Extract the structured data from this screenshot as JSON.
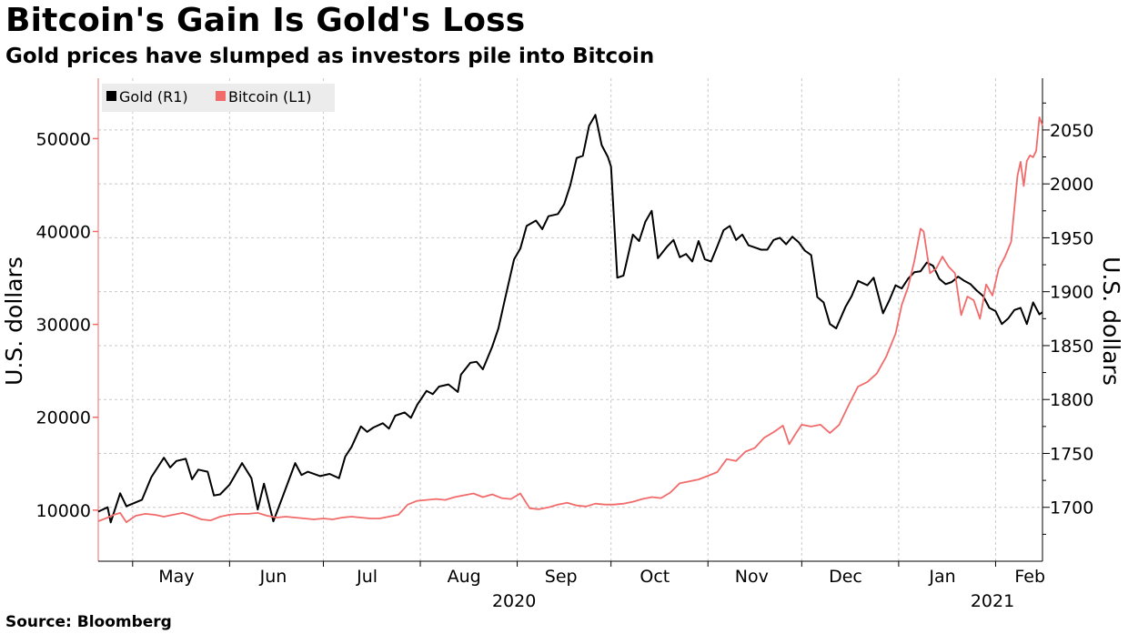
{
  "title": "Bitcoin's Gain Is Gold's Loss",
  "subtitle": "Gold prices have slumped as investors pile into Bitcoin",
  "source": "Source: Bloomberg",
  "colors": {
    "gold": "#000000",
    "bitcoin": "#f26b6b",
    "grid": "#c8c8c8",
    "legend_bg": "#ececec"
  },
  "chart_data": {
    "type": "line",
    "x_start": "2020-04-20",
    "x_end": "2021-02-16",
    "x_ticks": [
      {
        "label": "May",
        "date": "2020-05-15"
      },
      {
        "label": "Jun",
        "date": "2020-06-15"
      },
      {
        "label": "Jul",
        "date": "2020-07-15"
      },
      {
        "label": "Aug",
        "date": "2020-08-15"
      },
      {
        "label": "Sep",
        "date": "2020-09-15"
      },
      {
        "label": "Oct",
        "date": "2020-10-15"
      },
      {
        "label": "Nov",
        "date": "2020-11-15"
      },
      {
        "label": "Dec",
        "date": "2020-12-15"
      },
      {
        "label": "Jan",
        "date": "2021-01-15"
      },
      {
        "label": "Feb",
        "date": "2021-02-12"
      }
    ],
    "x_gridlines": [
      "2020-05-01",
      "2020-06-01",
      "2020-07-01",
      "2020-08-01",
      "2020-09-01",
      "2020-10-01",
      "2020-11-01",
      "2020-12-01",
      "2021-01-01",
      "2021-02-01"
    ],
    "year_labels": [
      {
        "label": "2020",
        "date": "2020-08-31"
      },
      {
        "label": "2021",
        "date": "2021-01-31"
      }
    ],
    "left_axis": {
      "label": "U.S. dollars",
      "ylim": [
        4500,
        56500
      ],
      "ticks": [
        10000,
        20000,
        30000,
        40000,
        50000
      ]
    },
    "right_axis": {
      "label": "U.S. dollars",
      "ylim": [
        1650,
        2098
      ],
      "ticks": [
        1700,
        1750,
        1800,
        1850,
        1900,
        1950,
        2000,
        2050
      ]
    },
    "legend": {
      "placement": "top-left",
      "entries": [
        "Gold (R1)",
        "Bitcoin (L1)"
      ]
    },
    "series": [
      {
        "name": "Gold (R1)",
        "axis": "right",
        "points": [
          [
            "2020-04-20",
            1696
          ],
          [
            "2020-04-23",
            1700
          ],
          [
            "2020-04-24",
            1686
          ],
          [
            "2020-04-27",
            1713
          ],
          [
            "2020-04-29",
            1701
          ],
          [
            "2020-05-04",
            1707
          ],
          [
            "2020-05-07",
            1728
          ],
          [
            "2020-05-11",
            1746
          ],
          [
            "2020-05-13",
            1737
          ],
          [
            "2020-05-15",
            1743
          ],
          [
            "2020-05-18",
            1745
          ],
          [
            "2020-05-20",
            1726
          ],
          [
            "2020-05-22",
            1735
          ],
          [
            "2020-05-25",
            1733
          ],
          [
            "2020-05-27",
            1711
          ],
          [
            "2020-05-29",
            1712
          ],
          [
            "2020-06-01",
            1721
          ],
          [
            "2020-06-05",
            1741
          ],
          [
            "2020-06-08",
            1727
          ],
          [
            "2020-06-10",
            1698
          ],
          [
            "2020-06-12",
            1722
          ],
          [
            "2020-06-15",
            1687
          ],
          [
            "2020-06-18",
            1710
          ],
          [
            "2020-06-22",
            1741
          ],
          [
            "2020-06-24",
            1730
          ],
          [
            "2020-06-26",
            1733
          ],
          [
            "2020-06-30",
            1729
          ],
          [
            "2020-07-03",
            1731
          ],
          [
            "2020-07-06",
            1727
          ],
          [
            "2020-07-08",
            1747
          ],
          [
            "2020-07-10",
            1756
          ],
          [
            "2020-07-13",
            1775
          ],
          [
            "2020-07-15",
            1770
          ],
          [
            "2020-07-17",
            1774
          ],
          [
            "2020-07-20",
            1778
          ],
          [
            "2020-07-22",
            1773
          ],
          [
            "2020-07-24",
            1785
          ],
          [
            "2020-07-27",
            1788
          ],
          [
            "2020-07-29",
            1783
          ],
          [
            "2020-07-31",
            1795
          ],
          [
            "2020-08-03",
            1808
          ],
          [
            "2020-08-05",
            1805
          ],
          [
            "2020-08-07",
            1812
          ],
          [
            "2020-08-10",
            1814
          ],
          [
            "2020-08-13",
            1807
          ],
          [
            "2020-08-14",
            1823
          ],
          [
            "2020-08-17",
            1834
          ],
          [
            "2020-08-19",
            1835
          ],
          [
            "2020-08-21",
            1828
          ],
          [
            "2020-08-24",
            1849
          ],
          [
            "2020-08-26",
            1866
          ],
          [
            "2020-08-28",
            1892
          ],
          [
            "2020-08-31",
            1930
          ],
          [
            "2020-09-02",
            1940
          ],
          [
            "2020-09-04",
            1961
          ],
          [
            "2020-09-07",
            1966
          ],
          [
            "2020-09-09",
            1958
          ],
          [
            "2020-09-11",
            1970
          ],
          [
            "2020-09-14",
            1972
          ],
          [
            "2020-09-16",
            1981
          ],
          [
            "2020-09-18",
            1999
          ],
          [
            "2020-09-20",
            2024
          ],
          [
            "2020-09-22",
            2026
          ],
          [
            "2020-09-24",
            2054
          ],
          [
            "2020-09-26",
            2064
          ],
          [
            "2020-09-28",
            2036
          ],
          [
            "2020-09-30",
            2025
          ],
          [
            "2020-10-01",
            2016
          ],
          [
            "2020-10-03",
            1913
          ],
          [
            "2020-10-05",
            1915
          ],
          [
            "2020-10-08",
            1953
          ],
          [
            "2020-10-10",
            1947
          ],
          [
            "2020-10-12",
            1965
          ],
          [
            "2020-10-14",
            1975
          ],
          [
            "2020-10-16",
            1931
          ],
          [
            "2020-10-19",
            1942
          ],
          [
            "2020-10-21",
            1948
          ],
          [
            "2020-10-23",
            1932
          ],
          [
            "2020-10-25",
            1935
          ],
          [
            "2020-10-27",
            1928
          ],
          [
            "2020-10-29",
            1947
          ],
          [
            "2020-10-31",
            1930
          ],
          [
            "2020-11-02",
            1928
          ],
          [
            "2020-11-04",
            1942
          ],
          [
            "2020-11-06",
            1957
          ],
          [
            "2020-11-08",
            1961
          ],
          [
            "2020-11-10",
            1948
          ],
          [
            "2020-11-12",
            1953
          ],
          [
            "2020-11-14",
            1943
          ],
          [
            "2020-11-16",
            1941
          ],
          [
            "2020-11-18",
            1939
          ],
          [
            "2020-11-20",
            1939
          ],
          [
            "2020-11-22",
            1948
          ],
          [
            "2020-11-24",
            1950
          ],
          [
            "2020-11-26",
            1944
          ],
          [
            "2020-11-28",
            1951
          ],
          [
            "2020-11-30",
            1946
          ],
          [
            "2020-12-02",
            1938
          ],
          [
            "2020-12-04",
            1934
          ],
          [
            "2020-12-06",
            1895
          ],
          [
            "2020-12-08",
            1890
          ],
          [
            "2020-12-10",
            1870
          ],
          [
            "2020-12-12",
            1866
          ],
          [
            "2020-12-15",
            1886
          ],
          [
            "2020-12-17",
            1896
          ],
          [
            "2020-12-19",
            1910
          ],
          [
            "2020-12-22",
            1906
          ],
          [
            "2020-12-24",
            1913
          ],
          [
            "2020-12-27",
            1880
          ],
          [
            "2020-12-29",
            1892
          ],
          [
            "2020-12-31",
            1906
          ],
          [
            "2021-01-02",
            1903
          ],
          [
            "2021-01-04",
            1912
          ],
          [
            "2021-01-06",
            1918
          ],
          [
            "2021-01-08",
            1919
          ],
          [
            "2021-01-10",
            1927
          ],
          [
            "2021-01-12",
            1924
          ],
          [
            "2021-01-14",
            1912
          ],
          [
            "2021-01-16",
            1907
          ],
          [
            "2021-01-18",
            1909
          ],
          [
            "2021-01-20",
            1914
          ],
          [
            "2021-01-22",
            1910
          ],
          [
            "2021-01-24",
            1907
          ],
          [
            "2021-01-26",
            1901
          ],
          [
            "2021-01-28",
            1896
          ],
          [
            "2021-01-30",
            1885
          ],
          [
            "2021-02-01",
            1882
          ],
          [
            "2021-02-03",
            1870
          ],
          [
            "2021-02-05",
            1875
          ],
          [
            "2021-02-07",
            1883
          ],
          [
            "2021-02-09",
            1885
          ],
          [
            "2021-02-11",
            1870
          ],
          [
            "2021-02-13",
            1890
          ],
          [
            "2021-02-15",
            1879
          ],
          [
            "2021-02-16",
            1881
          ]
        ]
      },
      {
        "name": "Bitcoin (L1)",
        "axis": "left",
        "points": [
          [
            "2020-04-20",
            8800
          ],
          [
            "2020-04-23",
            9200
          ],
          [
            "2020-04-25",
            9500
          ],
          [
            "2020-04-27",
            9700
          ],
          [
            "2020-04-29",
            8700
          ],
          [
            "2020-05-02",
            9400
          ],
          [
            "2020-05-05",
            9600
          ],
          [
            "2020-05-08",
            9500
          ],
          [
            "2020-05-11",
            9300
          ],
          [
            "2020-05-14",
            9500
          ],
          [
            "2020-05-17",
            9700
          ],
          [
            "2020-05-20",
            9400
          ],
          [
            "2020-05-23",
            9000
          ],
          [
            "2020-05-26",
            8900
          ],
          [
            "2020-05-29",
            9300
          ],
          [
            "2020-06-01",
            9500
          ],
          [
            "2020-06-04",
            9600
          ],
          [
            "2020-06-07",
            9600
          ],
          [
            "2020-06-10",
            9700
          ],
          [
            "2020-06-13",
            9400
          ],
          [
            "2020-06-16",
            9200
          ],
          [
            "2020-06-19",
            9300
          ],
          [
            "2020-06-22",
            9200
          ],
          [
            "2020-06-25",
            9100
          ],
          [
            "2020-06-28",
            9000
          ],
          [
            "2020-07-01",
            9100
          ],
          [
            "2020-07-04",
            9000
          ],
          [
            "2020-07-07",
            9200
          ],
          [
            "2020-07-10",
            9300
          ],
          [
            "2020-07-13",
            9200
          ],
          [
            "2020-07-16",
            9100
          ],
          [
            "2020-07-19",
            9100
          ],
          [
            "2020-07-22",
            9300
          ],
          [
            "2020-07-25",
            9500
          ],
          [
            "2020-07-28",
            10600
          ],
          [
            "2020-07-31",
            11000
          ],
          [
            "2020-08-03",
            11100
          ],
          [
            "2020-08-06",
            11200
          ],
          [
            "2020-08-09",
            11100
          ],
          [
            "2020-08-12",
            11400
          ],
          [
            "2020-08-15",
            11600
          ],
          [
            "2020-08-18",
            11800
          ],
          [
            "2020-08-21",
            11400
          ],
          [
            "2020-08-24",
            11700
          ],
          [
            "2020-08-27",
            11300
          ],
          [
            "2020-08-30",
            11200
          ],
          [
            "2020-09-02",
            11800
          ],
          [
            "2020-09-05",
            10200
          ],
          [
            "2020-09-08",
            10100
          ],
          [
            "2020-09-11",
            10300
          ],
          [
            "2020-09-14",
            10600
          ],
          [
            "2020-09-17",
            10800
          ],
          [
            "2020-09-20",
            10500
          ],
          [
            "2020-09-23",
            10400
          ],
          [
            "2020-09-26",
            10700
          ],
          [
            "2020-09-29",
            10600
          ],
          [
            "2020-10-02",
            10600
          ],
          [
            "2020-10-05",
            10700
          ],
          [
            "2020-10-08",
            10900
          ],
          [
            "2020-10-11",
            11200
          ],
          [
            "2020-10-14",
            11400
          ],
          [
            "2020-10-17",
            11300
          ],
          [
            "2020-10-20",
            11900
          ],
          [
            "2020-10-23",
            12900
          ],
          [
            "2020-10-26",
            13100
          ],
          [
            "2020-10-29",
            13300
          ],
          [
            "2020-11-01",
            13700
          ],
          [
            "2020-11-04",
            14100
          ],
          [
            "2020-11-07",
            15500
          ],
          [
            "2020-11-10",
            15300
          ],
          [
            "2020-11-13",
            16300
          ],
          [
            "2020-11-16",
            16700
          ],
          [
            "2020-11-19",
            17800
          ],
          [
            "2020-11-22",
            18400
          ],
          [
            "2020-11-25",
            19100
          ],
          [
            "2020-11-27",
            17100
          ],
          [
            "2020-11-29",
            18200
          ],
          [
            "2020-12-01",
            19200
          ],
          [
            "2020-12-04",
            19000
          ],
          [
            "2020-12-07",
            19200
          ],
          [
            "2020-12-10",
            18300
          ],
          [
            "2020-12-13",
            19200
          ],
          [
            "2020-12-16",
            21300
          ],
          [
            "2020-12-19",
            23300
          ],
          [
            "2020-12-22",
            23800
          ],
          [
            "2020-12-25",
            24700
          ],
          [
            "2020-12-28",
            26500
          ],
          [
            "2020-12-31",
            29000
          ],
          [
            "2021-01-02",
            32100
          ],
          [
            "2021-01-04",
            34000
          ],
          [
            "2021-01-06",
            36800
          ],
          [
            "2021-01-08",
            40300
          ],
          [
            "2021-01-09",
            40000
          ],
          [
            "2021-01-11",
            35500
          ],
          [
            "2021-01-13",
            36000
          ],
          [
            "2021-01-15",
            37300
          ],
          [
            "2021-01-17",
            36200
          ],
          [
            "2021-01-19",
            35500
          ],
          [
            "2021-01-21",
            31000
          ],
          [
            "2021-01-23",
            33000
          ],
          [
            "2021-01-25",
            32600
          ],
          [
            "2021-01-27",
            30600
          ],
          [
            "2021-01-29",
            34300
          ],
          [
            "2021-01-31",
            33100
          ],
          [
            "2021-02-02",
            36000
          ],
          [
            "2021-02-04",
            37300
          ],
          [
            "2021-02-06",
            38900
          ],
          [
            "2021-02-08",
            46000
          ],
          [
            "2021-02-09",
            47500
          ],
          [
            "2021-02-10",
            44900
          ],
          [
            "2021-02-11",
            47600
          ],
          [
            "2021-02-12",
            48200
          ],
          [
            "2021-02-13",
            48000
          ],
          [
            "2021-02-14",
            48700
          ],
          [
            "2021-02-15",
            52300
          ],
          [
            "2021-02-16",
            51400
          ]
        ]
      }
    ]
  }
}
